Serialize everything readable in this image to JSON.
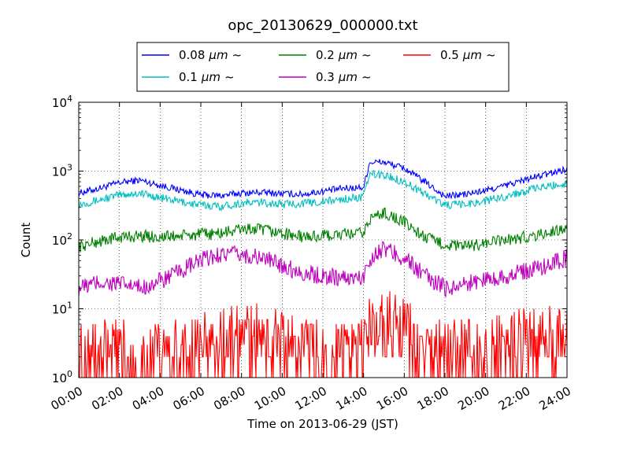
{
  "chart_data": {
    "type": "line",
    "title": "opc_20130629_000000.txt",
    "xlabel": "Time on 2013-06-29 (JST)",
    "ylabel": "Count",
    "yscale": "log",
    "ylim": [
      1,
      10000
    ],
    "xlim_hours": [
      0,
      24
    ],
    "x_tick_labels": [
      "00:00",
      "02:00",
      "04:00",
      "06:00",
      "08:00",
      "10:00",
      "12:00",
      "14:00",
      "16:00",
      "18:00",
      "20:00",
      "22:00",
      "24:00"
    ],
    "y_tick_labels": [
      {
        "base": "10",
        "exp": "0"
      },
      {
        "base": "10",
        "exp": "1"
      },
      {
        "base": "10",
        "exp": "2"
      },
      {
        "base": "10",
        "exp": "3"
      },
      {
        "base": "10",
        "exp": "4"
      }
    ],
    "grid": true,
    "legend_position": "top-center",
    "x_hours": [
      0,
      1,
      2,
      3,
      4,
      5,
      6,
      7,
      8,
      9,
      10,
      11,
      12,
      13,
      14,
      14.3,
      15,
      16,
      17,
      18,
      19,
      20,
      21,
      22,
      23,
      24
    ],
    "series": [
      {
        "name": "0.08",
        "unit": "μm",
        "suffix": "~",
        "color": "#0000ff",
        "values": [
          480,
          560,
          680,
          740,
          620,
          530,
          450,
          440,
          480,
          490,
          470,
          460,
          510,
          560,
          580,
          1350,
          1350,
          1100,
          700,
          430,
          460,
          520,
          620,
          760,
          900,
          1080
        ]
      },
      {
        "name": "0.1",
        "unit": "μm",
        "suffix": "~",
        "color": "#00bfbf",
        "values": [
          330,
          380,
          450,
          480,
          410,
          360,
          320,
          310,
          340,
          350,
          330,
          340,
          360,
          390,
          420,
          900,
          880,
          700,
          470,
          320,
          330,
          370,
          430,
          520,
          600,
          660
        ]
      },
      {
        "name": "0.2",
        "unit": "μm",
        "suffix": "~",
        "color": "#008000",
        "values": [
          80,
          95,
          110,
          115,
          110,
          115,
          120,
          125,
          145,
          140,
          125,
          110,
          115,
          120,
          125,
          200,
          250,
          180,
          110,
          85,
          80,
          90,
          100,
          110,
          125,
          150
        ]
      },
      {
        "name": "0.3",
        "unit": "μm",
        "suffix": "~",
        "color": "#bf00bf",
        "values": [
          20,
          24,
          23,
          20,
          25,
          35,
          50,
          63,
          60,
          55,
          43,
          33,
          30,
          28,
          28,
          55,
          75,
          55,
          30,
          20,
          23,
          27,
          30,
          35,
          43,
          55
        ]
      },
      {
        "name": "0.5",
        "unit": "μm",
        "suffix": "~",
        "color": "#ff0000",
        "values": [
          2,
          2,
          2,
          2,
          2,
          2,
          2.5,
          3,
          3.5,
          3.5,
          3,
          2.5,
          2,
          2,
          2,
          5,
          6,
          4,
          2,
          2,
          2,
          2,
          2.5,
          3,
          3,
          4
        ]
      }
    ]
  }
}
